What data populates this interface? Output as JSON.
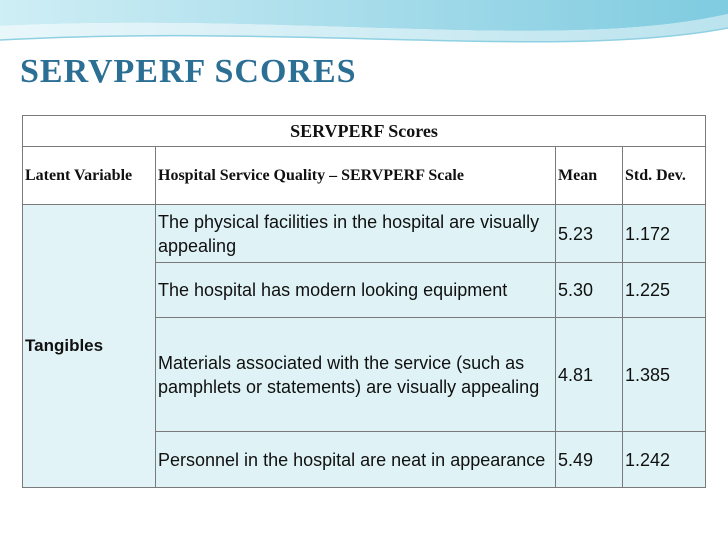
{
  "slide_title": "SERVPERF SCORES",
  "table": {
    "caption": "SERVPERF Scores",
    "headers": [
      "Latent Variable",
      "Hospital Service Quality – SERVPERF Scale",
      "Mean",
      "Std. Dev."
    ],
    "latent_variable": "Tangibles",
    "rows": [
      {
        "item": "The physical facilities in the hospital are visually appealing",
        "mean": "5.23",
        "sd": "1.172"
      },
      {
        "item": "The hospital has modern looking equipment",
        "mean": "5.30",
        "sd": "1.225"
      },
      {
        "item": "Materials associated with the service (such as pamphlets or statements) are visually appealing",
        "mean": "4.81",
        "sd": "1.385"
      },
      {
        "item": "Personnel in the hospital are neat in appearance",
        "mean": "5.49",
        "sd": "1.242"
      }
    ]
  },
  "colors": {
    "title": "#2c6f94",
    "cell_fill": "#dff3f7",
    "border": "#7a7a7a",
    "decoration": "#9fd7e8"
  }
}
